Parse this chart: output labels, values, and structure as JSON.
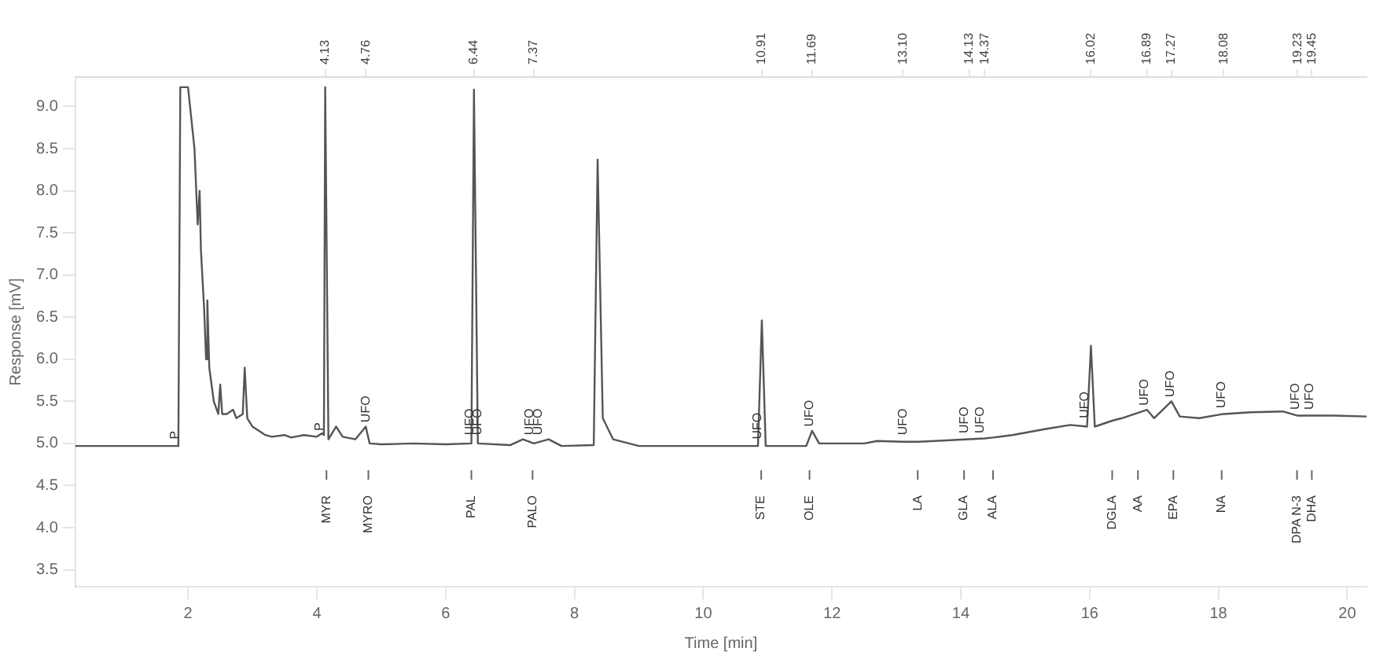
{
  "chart_data": {
    "type": "line",
    "xlabel": "Time [min]",
    "ylabel": "Response [mV]",
    "xlim": [
      0.25,
      20.3
    ],
    "xticks": [
      2,
      4,
      6,
      8,
      10,
      12,
      14,
      16,
      18,
      20
    ],
    "x2lim": [
      0.25,
      20.3
    ],
    "x2ticks": [
      4.13,
      4.76,
      6.44,
      7.37,
      10.91,
      11.69,
      {
        "value": 13.1,
        "label": "13.10"
      },
      14.13,
      14.37,
      16.02,
      16.89,
      17.27,
      18.08,
      19.23,
      19.45
    ],
    "ylim": [
      3.3,
      9.35
    ],
    "yticks": [
      3.5,
      {
        "value": 4,
        "label": "4.0"
      },
      4.5,
      {
        "value": 5,
        "label": "5.0"
      },
      5.5,
      {
        "value": 6,
        "label": "6.0"
      },
      6.5,
      {
        "value": 7,
        "label": "7.0"
      },
      7.5,
      {
        "value": 8,
        "label": "8.0"
      },
      8.5,
      {
        "value": 9,
        "label": "9.0"
      }
    ],
    "grid": false,
    "legend": false,
    "marker": "none",
    "line_style": "solid",
    "series": [
      {
        "color": "#555555",
        "x": [
          0.25,
          1.85,
          1.88,
          2.0,
          2.1,
          2.15,
          2.18,
          2.2,
          2.25,
          2.28,
          2.3,
          2.33,
          2.4,
          2.47,
          2.5,
          2.53,
          2.6,
          2.7,
          2.75,
          2.85,
          2.88,
          2.92,
          3.0,
          3.1,
          3.2,
          3.3,
          3.5,
          3.6,
          3.8,
          4.0,
          4.08,
          4.11,
          4.13,
          4.18,
          4.3,
          4.4,
          4.6,
          4.76,
          4.82,
          5.0,
          5.5,
          6.0,
          6.4,
          6.44,
          6.5,
          7.0,
          7.2,
          7.37,
          7.6,
          7.8,
          8.3,
          8.36,
          8.44,
          8.6,
          9.0,
          10.85,
          10.91,
          10.97,
          11.6,
          11.69,
          11.8,
          12.5,
          12.7,
          13.1,
          13.33,
          13.6,
          14.13,
          14.37,
          14.5,
          14.8,
          15.3,
          15.7,
          15.96,
          16.02,
          16.08,
          16.35,
          16.5,
          16.89,
          17.0,
          17.27,
          17.4,
          17.7,
          18.08,
          18.5,
          19.0,
          19.23,
          19.45,
          19.8,
          20.3
        ],
        "values": [
          4.97,
          4.97,
          9.23,
          9.23,
          8.5,
          7.6,
          8.0,
          7.3,
          6.6,
          6.0,
          6.7,
          5.9,
          5.5,
          5.35,
          5.7,
          5.35,
          5.35,
          5.4,
          5.3,
          5.35,
          5.9,
          5.3,
          5.2,
          5.15,
          5.1,
          5.08,
          5.1,
          5.07,
          5.1,
          5.08,
          5.12,
          5.1,
          9.23,
          5.05,
          5.2,
          5.08,
          5.05,
          5.2,
          5.0,
          4.99,
          5.0,
          4.99,
          5.0,
          9.2,
          5.0,
          4.98,
          5.05,
          5.0,
          5.05,
          4.97,
          4.98,
          8.37,
          5.3,
          5.05,
          4.97,
          4.97,
          6.46,
          4.97,
          4.97,
          5.15,
          5.0,
          5.0,
          5.03,
          5.02,
          5.02,
          5.03,
          5.05,
          5.06,
          5.07,
          5.1,
          5.17,
          5.22,
          5.2,
          6.16,
          5.2,
          5.27,
          5.3,
          5.4,
          5.3,
          5.5,
          5.32,
          5.3,
          5.35,
          5.37,
          5.38,
          5.33,
          5.33,
          5.33,
          5.32
        ]
      }
    ],
    "ref_lines": [
      {
        "axis": "x",
        "value": 4.15,
        "label": "MYR"
      },
      {
        "axis": "x",
        "value": 4.8,
        "label": "MYRO"
      },
      {
        "axis": "x",
        "value": 6.4,
        "label": "PAL"
      },
      {
        "axis": "x",
        "value": 7.35,
        "label": "PALO"
      },
      {
        "axis": "x",
        "value": 10.9,
        "label": "STE"
      },
      {
        "axis": "x",
        "value": 11.65,
        "label": "OLE"
      },
      {
        "axis": "x",
        "value": 13.33,
        "label": "LA"
      },
      {
        "axis": "x",
        "value": 14.05,
        "label": "GLA"
      },
      {
        "axis": "x",
        "value": 14.5,
        "label": "ALA"
      },
      {
        "axis": "x",
        "value": 16.35,
        "label": "DGLA"
      },
      {
        "axis": "x",
        "value": 16.75,
        "label": "AA"
      },
      {
        "axis": "x",
        "value": 17.3,
        "label": "EPA"
      },
      {
        "axis": "x",
        "value": 18.05,
        "label": "NA"
      },
      {
        "axis": "x",
        "value": 19.22,
        "label": "DPA N-3"
      },
      {
        "axis": "x",
        "value": 19.45,
        "label": "DHA"
      }
    ],
    "annotations": [
      {
        "text": "P",
        "x": 1.8,
        "y": 5.05
      },
      {
        "text": "P",
        "x": 4.05,
        "y": 5.15
      },
      {
        "text": "UFO",
        "x": 4.76,
        "y": 5.25
      },
      {
        "text": "UFO",
        "x": 6.38,
        "y": 5.1
      },
      {
        "text": "UFO",
        "x": 6.5,
        "y": 5.1
      },
      {
        "text": "UFO",
        "x": 7.3,
        "y": 5.1
      },
      {
        "text": "UFO",
        "x": 7.44,
        "y": 5.1
      },
      {
        "text": "UFO",
        "x": 10.85,
        "y": 5.05
      },
      {
        "text": "UFO",
        "x": 11.65,
        "y": 5.2
      },
      {
        "text": "UFO",
        "x": 13.1,
        "y": 5.1
      },
      {
        "text": "UFO",
        "x": 14.06,
        "y": 5.12
      },
      {
        "text": "UFO",
        "x": 14.3,
        "y": 5.12
      },
      {
        "text": "UFO",
        "x": 15.92,
        "y": 5.3
      },
      {
        "text": "UFO",
        "x": 16.85,
        "y": 5.45
      },
      {
        "text": "UFO",
        "x": 17.25,
        "y": 5.55
      },
      {
        "text": "UFO",
        "x": 18.05,
        "y": 5.42
      },
      {
        "text": "UFO",
        "x": 19.2,
        "y": 5.4
      },
      {
        "text": "UFO",
        "x": 19.42,
        "y": 5.4
      }
    ]
  }
}
